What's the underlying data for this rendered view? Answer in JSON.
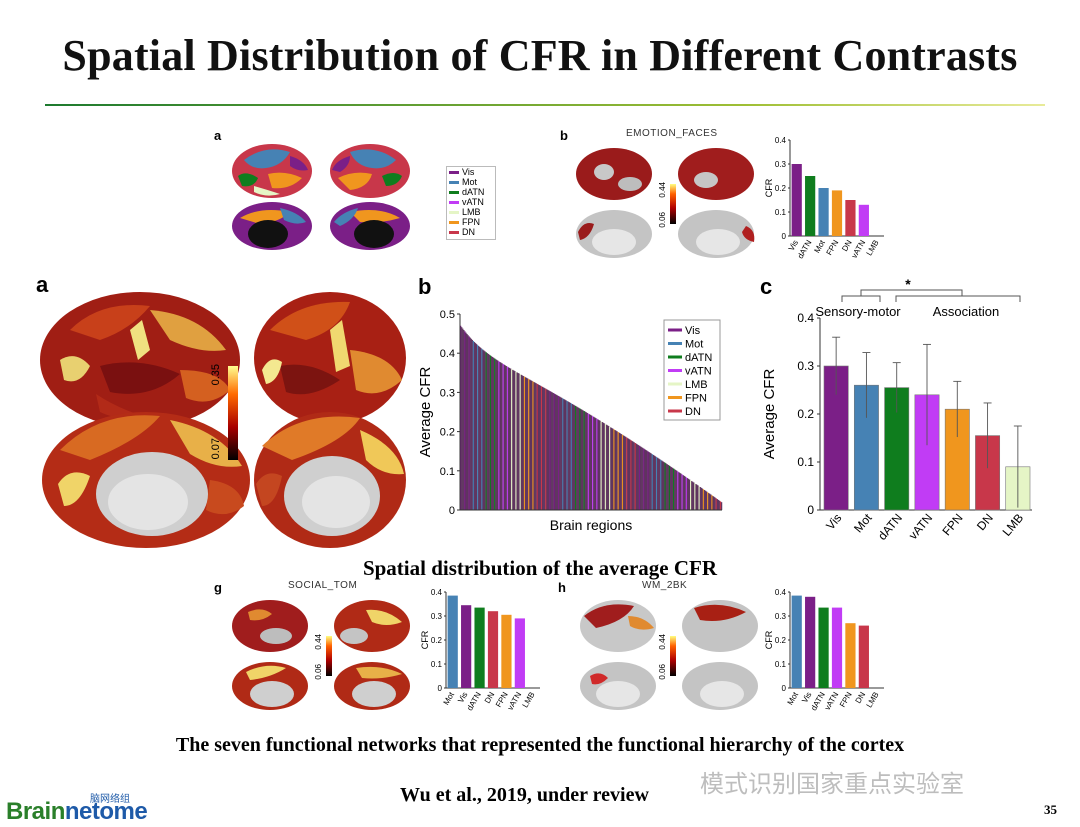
{
  "slide": {
    "title": "Spatial Distribution of CFR in Different Contrasts",
    "caption_main": "Spatial distribution of the average CFR",
    "caption_networks": "The seven functional networks that represented the functional hierarchy of the cortex",
    "citation": "Wu et al., 2019, under review",
    "page_number": "35",
    "watermark": "模式识别国家重点实验室",
    "logo": {
      "part1": "Brain",
      "part2": "netome",
      "subtitle": "脑网络组"
    }
  },
  "networks": [
    {
      "label": "Vis",
      "color": "#7b1f87"
    },
    {
      "label": "Mot",
      "color": "#4682b4"
    },
    {
      "label": "dATN",
      "color": "#0f7d1e"
    },
    {
      "label": "vATN",
      "color": "#c13cf5"
    },
    {
      "label": "LMB",
      "color": "#e5f5c6"
    },
    {
      "label": "FPN",
      "color": "#f0961e"
    },
    {
      "label": "DN",
      "color": "#c8374a"
    }
  ],
  "panel_top_a": {
    "label": "a"
  },
  "panel_top_b": {
    "label": "b",
    "title": "EMOTION_FACES",
    "cbar_max": "0.44",
    "cbar_min": "0.06"
  },
  "panel_mid_a": {
    "label": "a",
    "cbar_max": "0.35",
    "cbar_min": "0.07"
  },
  "panel_mid_b": {
    "label": "b"
  },
  "panel_mid_c": {
    "label": "c",
    "star": "*",
    "group1": "Sensory-motor",
    "group2": "Association"
  },
  "panel_g": {
    "label": "g",
    "title": "SOCIAL_TOM",
    "cbar_max": "0.44",
    "cbar_min": "0.06"
  },
  "panel_h": {
    "label": "h",
    "title": "WM_2BK",
    "cbar_max": "0.44",
    "cbar_min": "0.06"
  },
  "chart_data": [
    {
      "type": "bar",
      "id": "emotion_faces",
      "categories": [
        "Vis",
        "dATN",
        "Mot",
        "FPN",
        "DN",
        "vATN",
        "LMB"
      ],
      "values": [
        0.3,
        0.25,
        0.2,
        0.19,
        0.15,
        0.13,
        0
      ],
      "colors": [
        "#7b1f87",
        "#0f7d1e",
        "#4682b4",
        "#f0961e",
        "#c8374a",
        "#c13cf5",
        "#e5f5c6"
      ],
      "ylabel": "CFR",
      "ylim": [
        0,
        0.4
      ],
      "yticks": [
        "0",
        "0.1",
        "0.2",
        "0.3",
        "0.4"
      ]
    },
    {
      "type": "bar",
      "id": "brain_regions",
      "xlabel": "Brain regions",
      "ylabel": "Average CFR",
      "ylim": [
        0,
        0.5
      ],
      "yticks": [
        "0",
        "0.1",
        "0.2",
        "0.3",
        "0.4",
        "0.5"
      ],
      "max": 0.47,
      "min": 0.02,
      "legend": [
        "Vis",
        "Mot",
        "dATN",
        "vATN",
        "LMB",
        "FPN",
        "DN"
      ],
      "legend_position": "top-right"
    },
    {
      "type": "bar",
      "id": "average_cfr_networks",
      "categories": [
        "Vis",
        "Mot",
        "dATN",
        "vATN",
        "FPN",
        "DN",
        "LMB"
      ],
      "values": [
        0.3,
        0.26,
        0.255,
        0.24,
        0.21,
        0.155,
        0.09
      ],
      "errors": [
        0.06,
        0.068,
        0.052,
        0.105,
        0.058,
        0.068,
        0.085
      ],
      "colors": [
        "#7b1f87",
        "#4682b4",
        "#0f7d1e",
        "#c13cf5",
        "#f0961e",
        "#c8374a",
        "#e5f5c6"
      ],
      "ylabel": "Average CFR",
      "ylim": [
        0,
        0.4
      ],
      "yticks": [
        "0",
        "0.1",
        "0.2",
        "0.3",
        "0.4"
      ]
    },
    {
      "type": "bar",
      "id": "social_tom",
      "categories": [
        "Mot",
        "Vis",
        "dATN",
        "DN",
        "FPN",
        "vATN",
        "LMB"
      ],
      "values": [
        0.385,
        0.345,
        0.335,
        0.32,
        0.305,
        0.29,
        0
      ],
      "colors": [
        "#4682b4",
        "#7b1f87",
        "#0f7d1e",
        "#c8374a",
        "#f0961e",
        "#c13cf5",
        "#e5f5c6"
      ],
      "ylabel": "CFR",
      "ylim": [
        0,
        0.4
      ],
      "yticks": [
        "0",
        "0.1",
        "0.2",
        "0.3",
        "0.4"
      ]
    },
    {
      "type": "bar",
      "id": "wm_2bk",
      "categories": [
        "Mot",
        "Vis",
        "dATN",
        "vATN",
        "FPN",
        "DN",
        "LMB"
      ],
      "values": [
        0.385,
        0.38,
        0.335,
        0.335,
        0.27,
        0.26,
        0
      ],
      "colors": [
        "#4682b4",
        "#7b1f87",
        "#0f7d1e",
        "#c13cf5",
        "#f0961e",
        "#c8374a",
        "#e5f5c6"
      ],
      "ylabel": "CFR",
      "ylim": [
        0,
        0.4
      ],
      "yticks": [
        "0",
        "0.1",
        "0.2",
        "0.3",
        "0.4"
      ]
    }
  ]
}
